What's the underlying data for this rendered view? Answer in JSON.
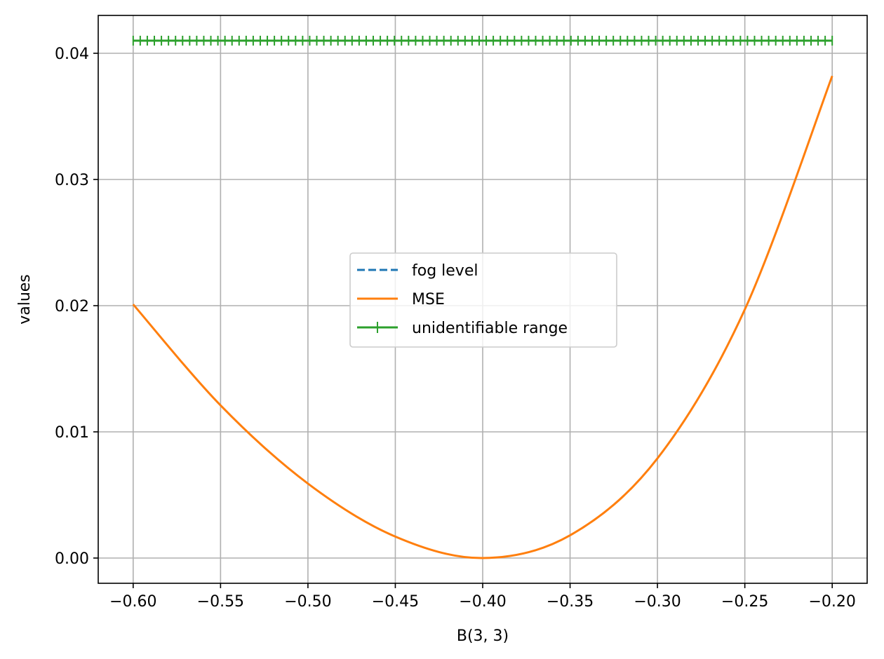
{
  "chart_data": {
    "type": "line",
    "title": "",
    "xlabel": "B(3, 3)",
    "ylabel": "values",
    "xlim": [
      -0.62,
      -0.18
    ],
    "ylim": [
      -0.002,
      0.043
    ],
    "xticks": [
      -0.6,
      -0.55,
      -0.5,
      -0.45,
      -0.4,
      -0.35,
      -0.3,
      -0.25,
      -0.2
    ],
    "xtick_labels": [
      "−0.60",
      "−0.55",
      "−0.50",
      "−0.45",
      "−0.40",
      "−0.35",
      "−0.30",
      "−0.25",
      "−0.20"
    ],
    "yticks": [
      0.0,
      0.01,
      0.02,
      0.03,
      0.04
    ],
    "ytick_labels": [
      "0.00",
      "0.01",
      "0.02",
      "0.03",
      "0.04"
    ],
    "grid": true,
    "legend_position": "center",
    "series": [
      {
        "name": "fog level",
        "style": "dashed",
        "color": "#1f77b4",
        "x": [
          -0.6,
          -0.2
        ],
        "y": [
          0.041,
          0.041
        ]
      },
      {
        "name": "MSE",
        "style": "solid",
        "color": "#ff7f0e",
        "x": [
          -0.6,
          -0.55,
          -0.5,
          -0.45,
          -0.4,
          -0.35,
          -0.3,
          -0.25,
          -0.2
        ],
        "y": [
          0.0201,
          0.0121,
          0.0059,
          0.0017,
          0.0,
          0.0018,
          0.0079,
          0.0197,
          0.0382
        ]
      },
      {
        "name": "unidentifiable range",
        "style": "solid-plus-markers",
        "color": "#2ca02c",
        "x_range": [
          -0.6,
          -0.2
        ],
        "y": 0.041,
        "marker_count": 100
      }
    ]
  }
}
